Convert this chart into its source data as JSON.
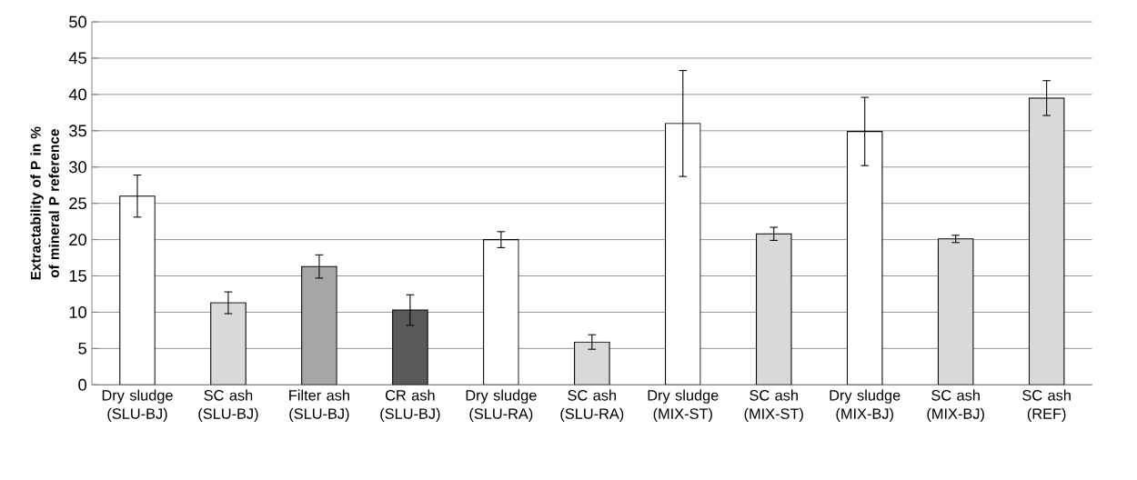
{
  "chart_data": {
    "type": "bar",
    "ylabel": "Extractability of P in % of mineral P reference",
    "categories": [
      "Dry sludge (SLU-BJ)",
      "SC ash (SLU-BJ)",
      "Filter ash (SLU-BJ)",
      "CR ash (SLU-BJ)",
      "Dry sludge (SLU-RA)",
      "SC ash (SLU-RA)",
      "Dry sludge (MIX-ST)",
      "SC ash (MIX-ST)",
      "Dry sludge (MIX-BJ)",
      "SC ash (MIX-BJ)",
      "SC ash (REF)"
    ],
    "values": [
      26,
      11.3,
      16.3,
      10.3,
      20,
      5.9,
      36,
      20.8,
      34.9,
      20.1,
      39.5
    ],
    "errors": [
      2.9,
      1.5,
      1.6,
      2.1,
      1.1,
      1,
      7.3,
      0.9,
      4.7,
      0.5,
      2.4
    ],
    "colors": [
      "#ffffff",
      "#d9d9d9",
      "#a6a6a8",
      "#59595b",
      "#ffffff",
      "#d9d9d9",
      "#ffffff",
      "#d9d9d9",
      "#ffffff",
      "#d9d9d9",
      "#d9d9d9"
    ],
    "ylim": [
      0,
      50
    ],
    "yticks": [
      0,
      5,
      10,
      15,
      20,
      25,
      30,
      35,
      40,
      45,
      50
    ],
    "grid": "y"
  }
}
